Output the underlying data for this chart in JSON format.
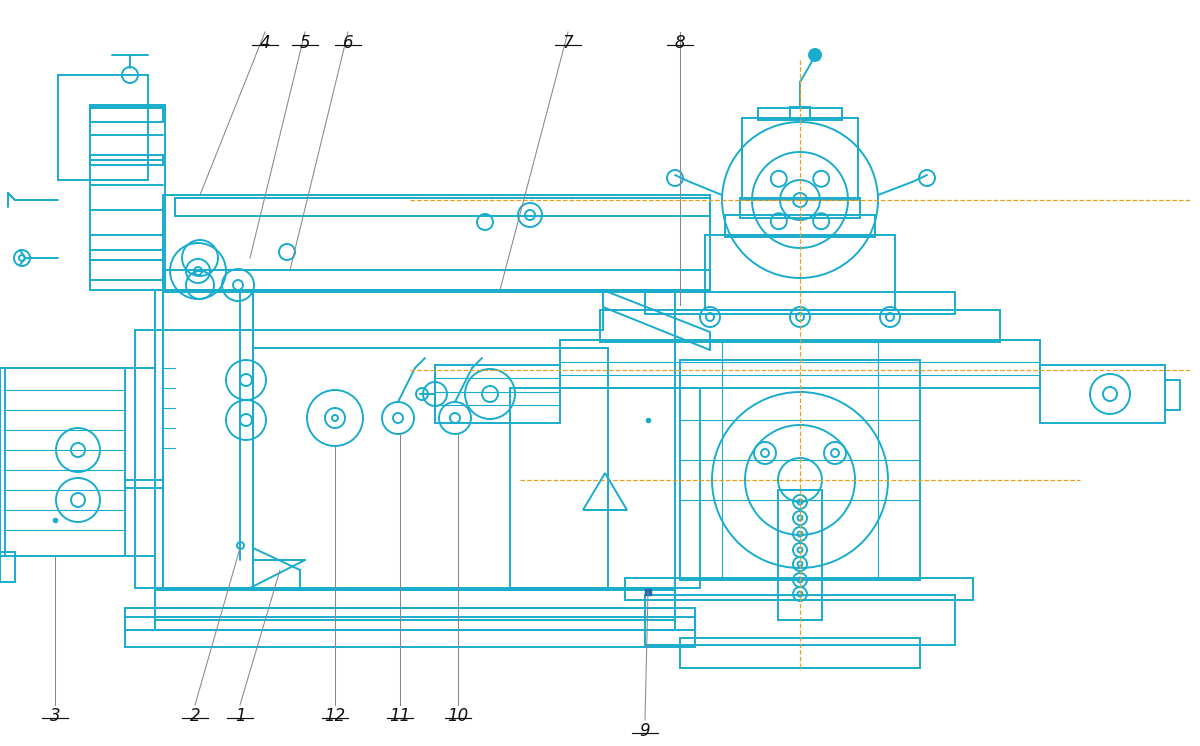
{
  "bg_color": "#ffffff",
  "line_color": "#1AACCC",
  "leader_color": "#888888",
  "label_color": "#111111",
  "centerline_color": "#E8A020",
  "fig_width": 12.0,
  "fig_height": 7.46,
  "dpi": 100
}
